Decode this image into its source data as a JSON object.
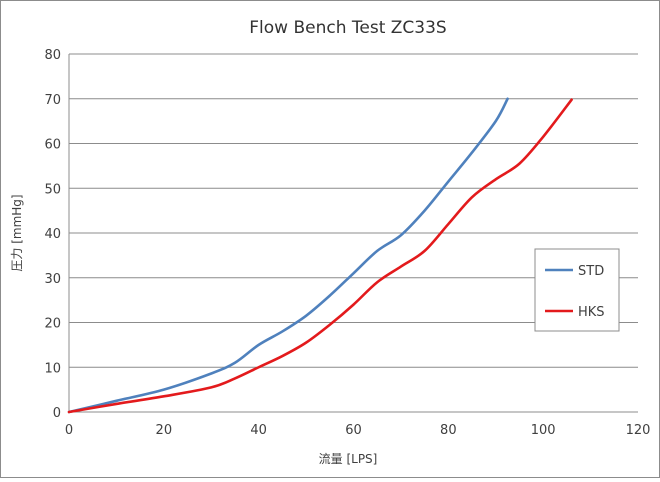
{
  "chart_data": {
    "type": "line",
    "title": "Flow Bench Test  ZC33S",
    "xlabel": "流量 [LPS]",
    "ylabel": "圧力 [mmHg]",
    "xlim": [
      0,
      120
    ],
    "ylim": [
      0,
      80
    ],
    "xticks": [
      "0",
      "20",
      "40",
      "60",
      "80",
      "100",
      "120"
    ],
    "yticks": [
      "0",
      "10",
      "20",
      "30",
      "40",
      "50",
      "60",
      "70",
      "80"
    ],
    "grid": "horizontal",
    "legend_position": "right",
    "series": [
      {
        "name": "STD",
        "color": "#4f81bd",
        "points": [
          [
            0,
            0
          ],
          [
            10,
            2.5
          ],
          [
            20,
            5
          ],
          [
            30,
            8.6
          ],
          [
            35,
            11
          ],
          [
            40,
            15
          ],
          [
            45,
            18
          ],
          [
            50,
            21.5
          ],
          [
            55,
            26
          ],
          [
            60,
            31
          ],
          [
            65,
            36
          ],
          [
            70,
            39.5
          ],
          [
            75,
            45
          ],
          [
            80,
            51.5
          ],
          [
            85,
            58
          ],
          [
            90,
            65
          ],
          [
            92.5,
            70
          ]
        ]
      },
      {
        "name": "HKS",
        "color": "#e31a1c",
        "points": [
          [
            0,
            0
          ],
          [
            10,
            1.8
          ],
          [
            20,
            3.5
          ],
          [
            30,
            5.5
          ],
          [
            35,
            7.5
          ],
          [
            40,
            10
          ],
          [
            45,
            12.5
          ],
          [
            50,
            15.5
          ],
          [
            55,
            19.5
          ],
          [
            60,
            24
          ],
          [
            65,
            29
          ],
          [
            70,
            32.5
          ],
          [
            75,
            36
          ],
          [
            80,
            42
          ],
          [
            85,
            48
          ],
          [
            90,
            52
          ],
          [
            95,
            55.5
          ],
          [
            100,
            61.5
          ],
          [
            106,
            69.8
          ]
        ]
      }
    ]
  }
}
